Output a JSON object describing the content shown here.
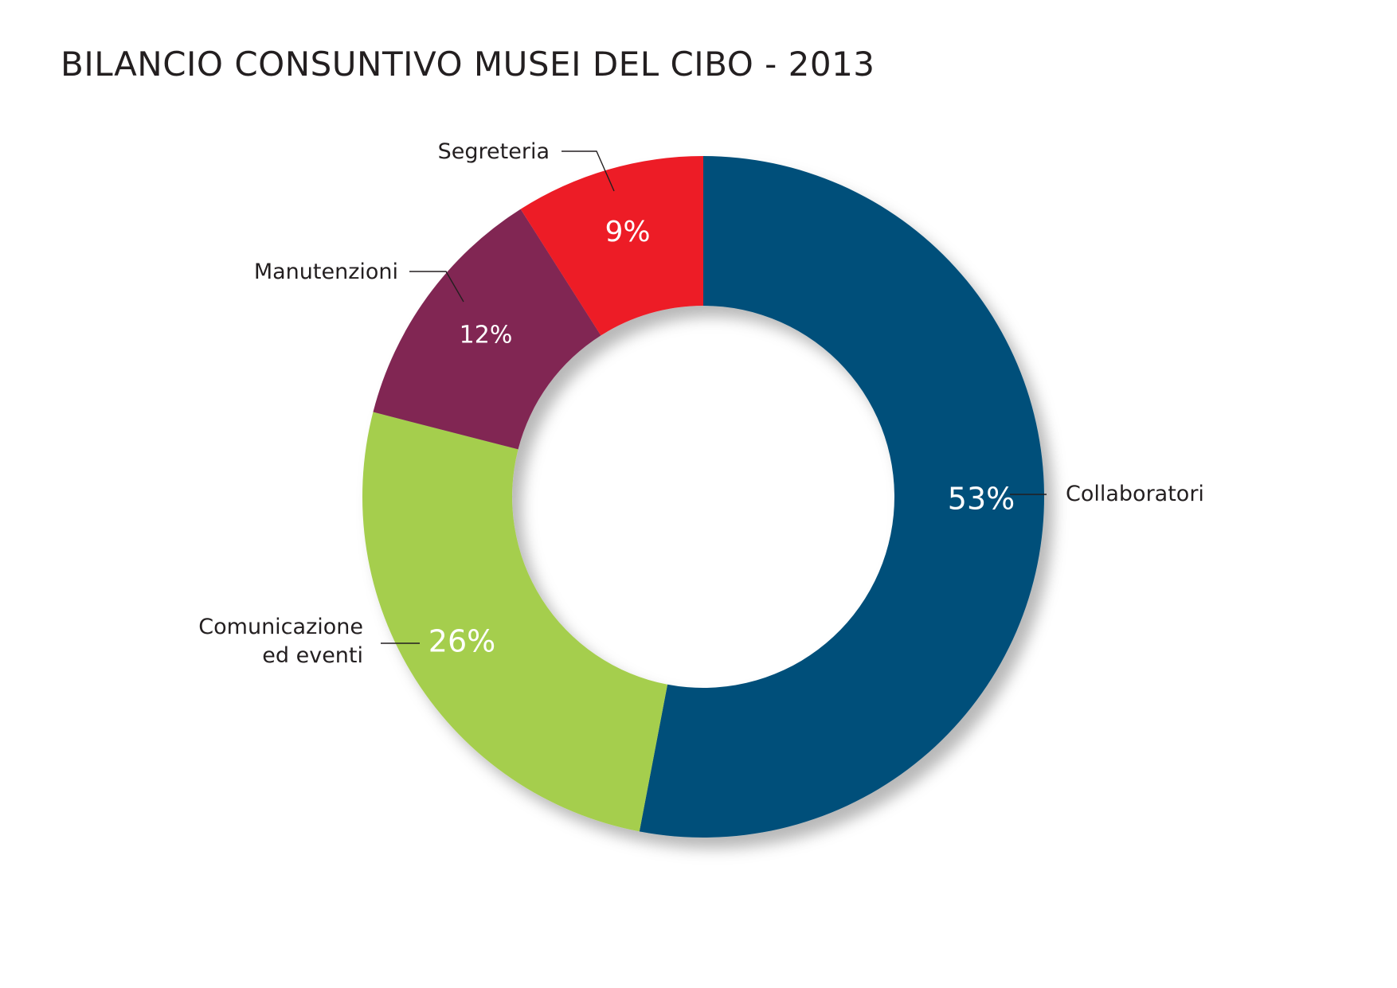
{
  "chart_data": {
    "type": "pie",
    "variant": "donut",
    "title": "BILANCIO CONSUNTIVO MUSEI DEL CIBO - 2013",
    "series": [
      {
        "name": "",
        "values": [
          53,
          26,
          12,
          9
        ]
      }
    ],
    "categories": [
      "Collaboratori",
      "Comunicazione ed eventi",
      "Manutenzioni",
      "Segreteria"
    ],
    "slices": [
      {
        "key": "collaboratori",
        "label_lines": [
          "Collaboratori"
        ],
        "value": 53,
        "value_label": "53%",
        "color": "#05507a"
      },
      {
        "key": "comunicazione",
        "label_lines": [
          "Comunicazione",
          "ed eventi"
        ],
        "value": 26,
        "value_label": "26%",
        "color": "#a5ce4e"
      },
      {
        "key": "manutenzioni",
        "label_lines": [
          "Manutenzioni"
        ],
        "value": 12,
        "value_label": "12%",
        "color": "#812852"
      },
      {
        "key": "segreteria",
        "label_lines": [
          "Segreteria"
        ],
        "value": 9,
        "value_label": "9%",
        "color": "#ed1c27"
      }
    ],
    "start_angle": "12 o'clock",
    "direction": "clockwise",
    "legend": "none"
  }
}
